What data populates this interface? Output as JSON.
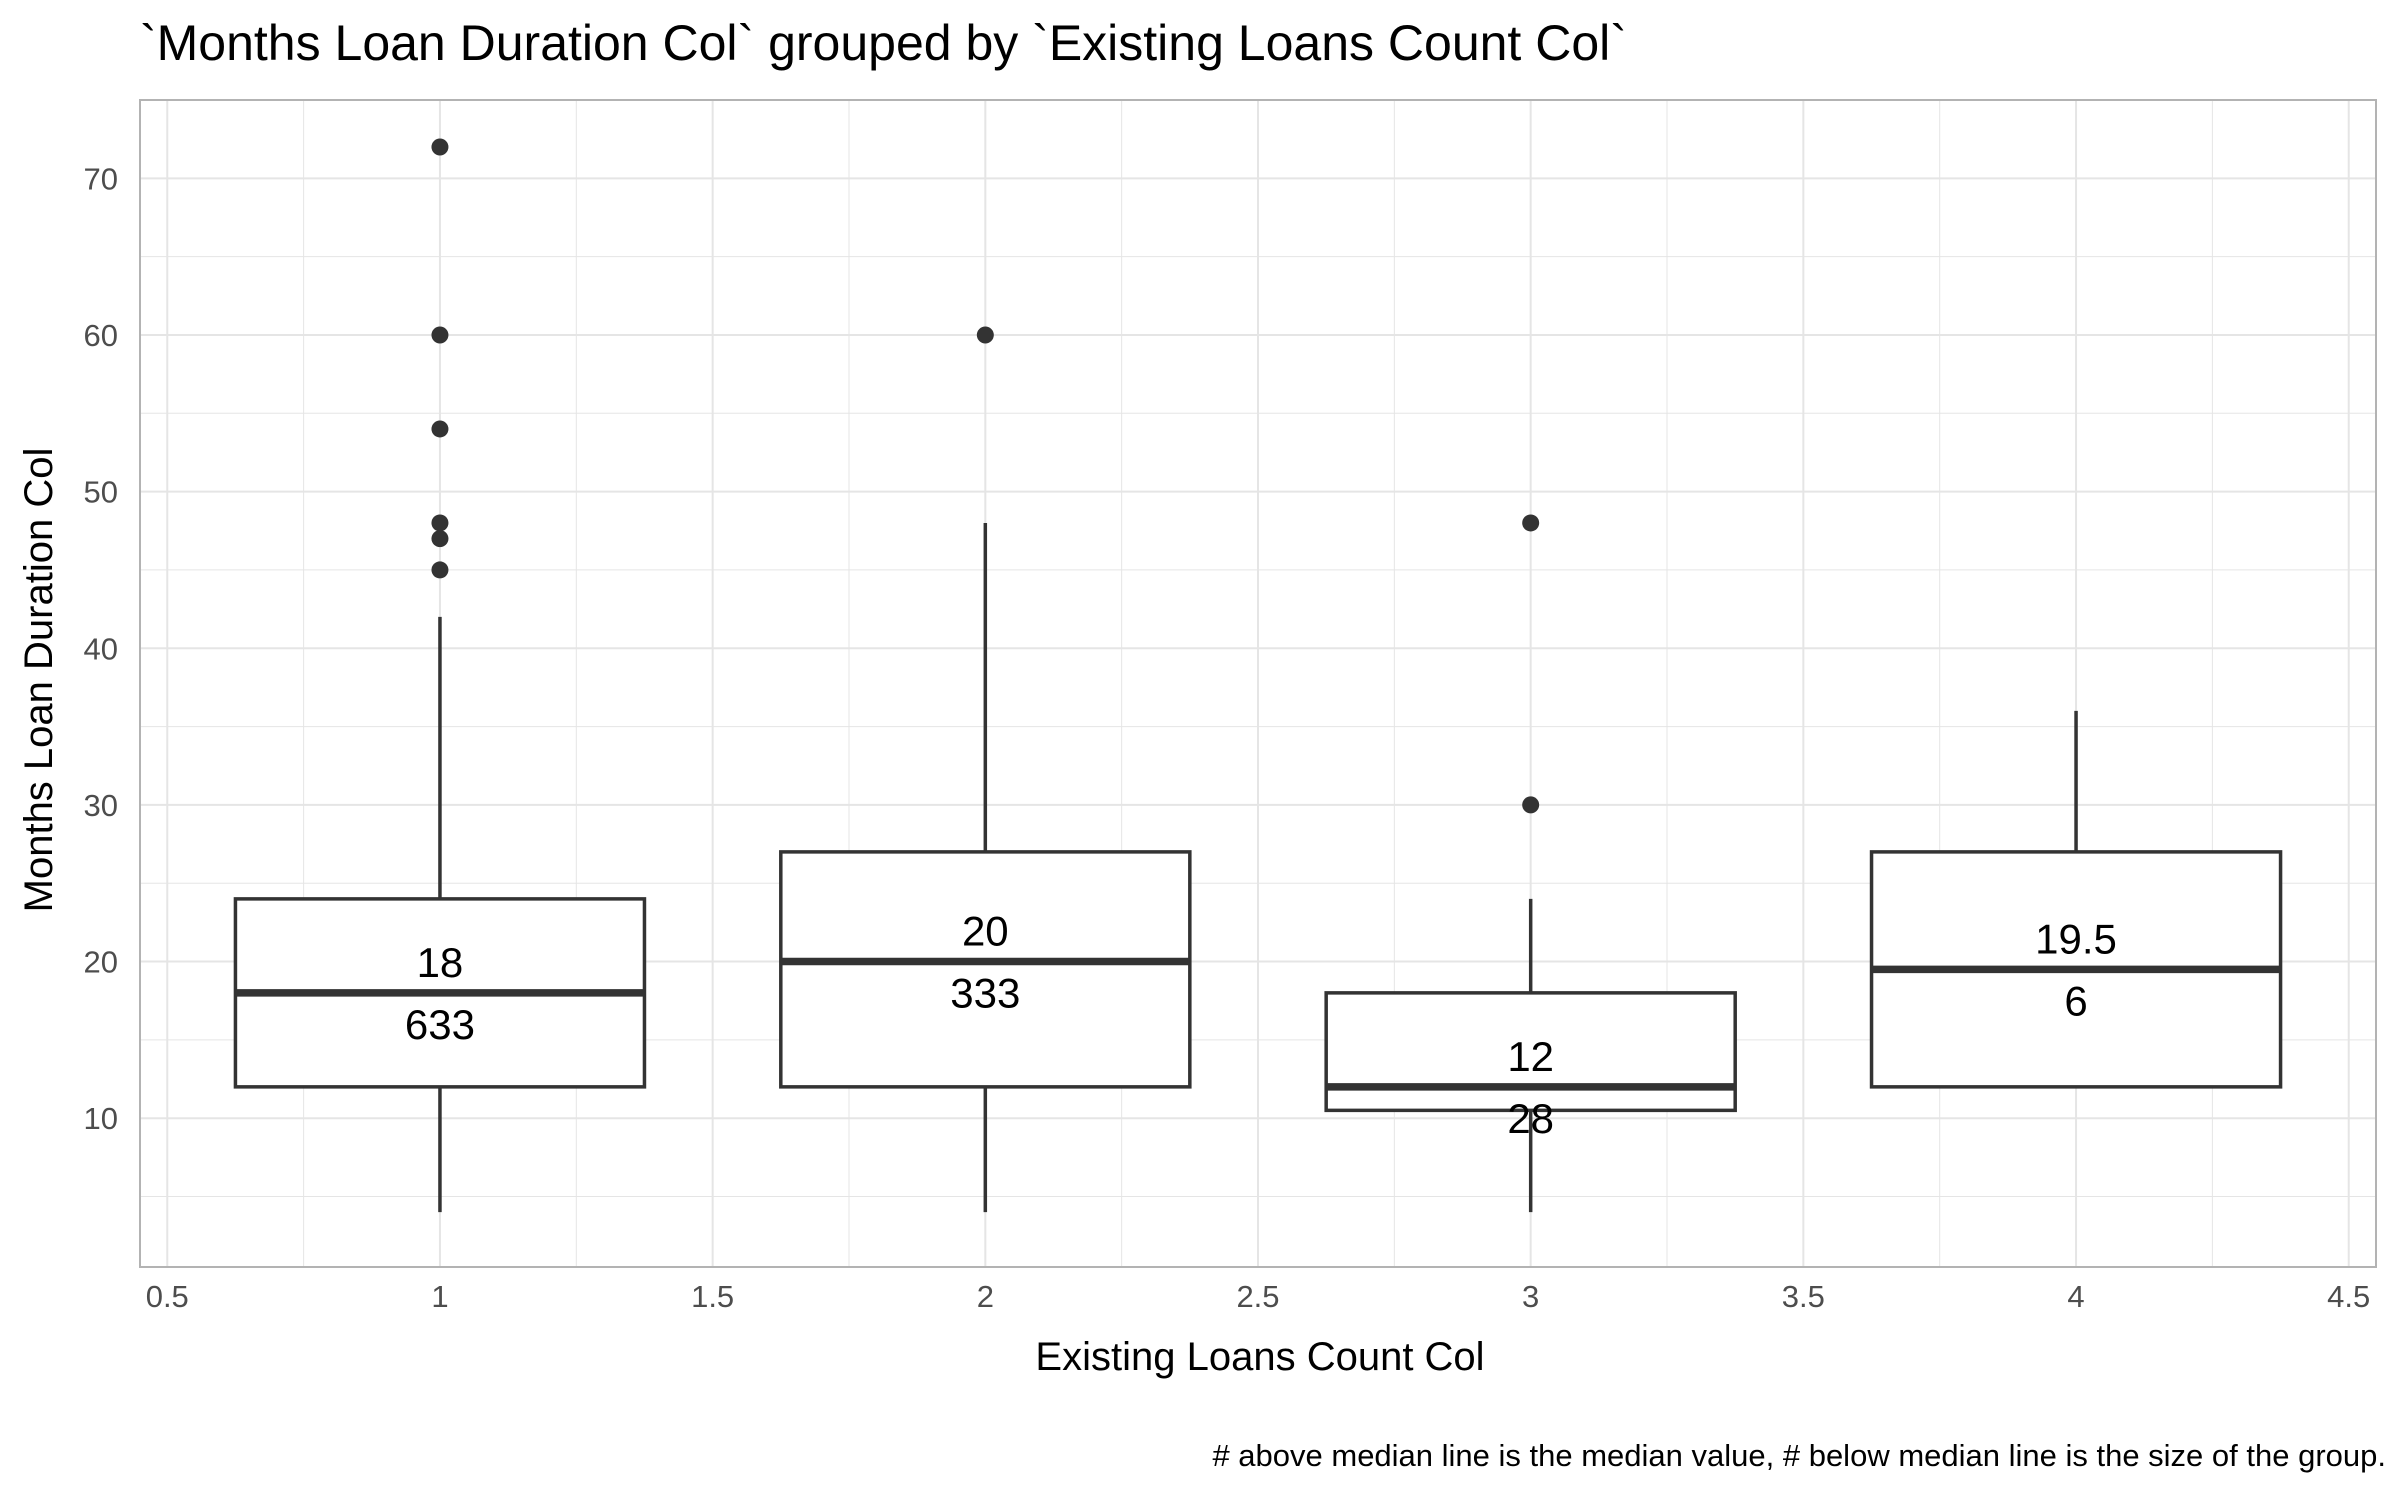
{
  "chart_data": {
    "type": "box",
    "title": "`Months Loan Duration Col` grouped by `Existing Loans Count Col`",
    "xlabel": "Existing Loans Count Col",
    "ylabel": "Months Loan Duration Col",
    "caption": "# above median line is the median value, # below median line is the size of the group.",
    "xlim": [
      0.45,
      4.55
    ],
    "ylim": [
      0.5,
      75
    ],
    "x_ticks": [
      0.5,
      1,
      1.5,
      2,
      2.5,
      3,
      3.5,
      4,
      4.5
    ],
    "x_tick_labels": [
      "0.5",
      "1",
      "1.5",
      "2",
      "2.5",
      "3",
      "3.5",
      "4",
      "4.5"
    ],
    "y_ticks": [
      10,
      20,
      30,
      40,
      50,
      60,
      70
    ],
    "y_tick_labels": [
      "10",
      "20",
      "30",
      "40",
      "50",
      "60",
      "70"
    ],
    "grid": true,
    "box_color": "#333333",
    "grid_color": "#e5e5e5",
    "groups": [
      {
        "x": 1,
        "q1": 12,
        "median": 18,
        "q3": 24,
        "whisker_low": 4,
        "whisker_high": 42,
        "median_label": "18",
        "count_label": "633",
        "outliers": [
          72,
          60,
          54,
          48,
          47,
          45
        ]
      },
      {
        "x": 2,
        "q1": 12,
        "median": 20,
        "q3": 27,
        "whisker_low": 4,
        "whisker_high": 48,
        "median_label": "20",
        "count_label": "333",
        "outliers": [
          60
        ]
      },
      {
        "x": 3,
        "q1": 10.5,
        "median": 12,
        "q3": 18,
        "whisker_low": 4,
        "whisker_high": 24,
        "median_label": "12",
        "count_label": "28",
        "outliers": [
          48,
          30
        ]
      },
      {
        "x": 4,
        "q1": 12,
        "median": 19.5,
        "q3": 27,
        "whisker_low": 12,
        "whisker_high": 36,
        "median_label": "19.5",
        "count_label": "6",
        "outliers": []
      }
    ]
  }
}
